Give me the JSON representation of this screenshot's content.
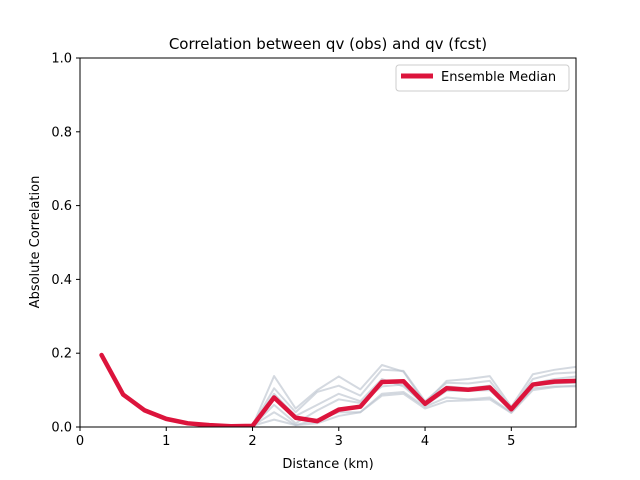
{
  "chart_data": {
    "type": "line",
    "title": "Correlation between qv (obs) and qv (fcst)",
    "xlabel": "Distance (km)",
    "ylabel": "Absolute Correlation",
    "xlim": [
      0,
      5.75
    ],
    "ylim": [
      0,
      1.0
    ],
    "xticks": [
      0,
      1,
      2,
      3,
      4,
      5
    ],
    "xtick_labels": [
      "0",
      "1",
      "2",
      "3",
      "4",
      "5"
    ],
    "yticks": [
      0.0,
      0.2,
      0.4,
      0.6,
      0.8,
      1.0
    ],
    "ytick_labels": [
      "0.0",
      "0.2",
      "0.4",
      "0.6",
      "0.8",
      "1.0"
    ],
    "grid": false,
    "legend_position": "top-right",
    "x": [
      0.25,
      0.5,
      0.75,
      1.0,
      1.25,
      1.5,
      1.75,
      2.0,
      2.25,
      2.5,
      2.75,
      3.0,
      3.25,
      3.5,
      3.75,
      4.0,
      4.25,
      4.5,
      4.75,
      5.0,
      5.25,
      5.5,
      5.75
    ],
    "series": [
      {
        "name": "Ensemble Median",
        "color": "#dc143c",
        "values": [
          0.195,
          0.088,
          0.045,
          0.022,
          0.01,
          0.005,
          0.002,
          0.003,
          0.08,
          0.025,
          0.016,
          0.047,
          0.055,
          0.122,
          0.124,
          0.063,
          0.105,
          0.101,
          0.107,
          0.048,
          0.115,
          0.123,
          0.125
        ]
      },
      {
        "color": "#b8bfcc",
        "values": [
          0.195,
          0.088,
          0.045,
          0.022,
          0.01,
          0.005,
          0.002,
          0.003,
          0.138,
          0.05,
          0.1,
          0.137,
          0.102,
          0.168,
          0.15,
          0.065,
          0.125,
          0.13,
          0.138,
          0.055,
          0.143,
          0.155,
          0.163
        ]
      },
      {
        "color": "#b8bfcc",
        "values": [
          0.195,
          0.088,
          0.045,
          0.022,
          0.01,
          0.005,
          0.002,
          0.003,
          0.105,
          0.04,
          0.095,
          0.112,
          0.085,
          0.155,
          0.152,
          0.07,
          0.12,
          0.118,
          0.125,
          0.05,
          0.13,
          0.145,
          0.148
        ]
      },
      {
        "color": "#b8bfcc",
        "values": [
          0.195,
          0.088,
          0.045,
          0.022,
          0.01,
          0.005,
          0.002,
          0.003,
          0.09,
          0.03,
          0.06,
          0.09,
          0.07,
          0.13,
          0.11,
          0.06,
          0.11,
          0.105,
          0.112,
          0.047,
          0.118,
          0.13,
          0.137
        ]
      },
      {
        "color": "#b8bfcc",
        "values": [
          0.195,
          0.088,
          0.045,
          0.022,
          0.01,
          0.005,
          0.002,
          0.003,
          0.06,
          0.01,
          0.045,
          0.075,
          0.065,
          0.11,
          0.115,
          0.058,
          0.098,
          0.098,
          0.1,
          0.045,
          0.112,
          0.118,
          0.12
        ]
      },
      {
        "color": "#b8bfcc",
        "values": [
          0.195,
          0.088,
          0.045,
          0.022,
          0.01,
          0.005,
          0.002,
          0.003,
          0.04,
          0.005,
          0.02,
          0.04,
          0.04,
          0.09,
          0.095,
          0.055,
          0.08,
          0.075,
          0.08,
          0.04,
          0.105,
          0.11,
          0.11
        ]
      },
      {
        "color": "#b8bfcc",
        "values": [
          0.195,
          0.088,
          0.045,
          0.022,
          0.01,
          0.005,
          0.002,
          0.003,
          0.02,
          0.005,
          0.01,
          0.03,
          0.04,
          0.085,
          0.09,
          0.05,
          0.07,
          0.072,
          0.075,
          0.038,
          0.1,
          0.108,
          0.112
        ]
      }
    ]
  }
}
